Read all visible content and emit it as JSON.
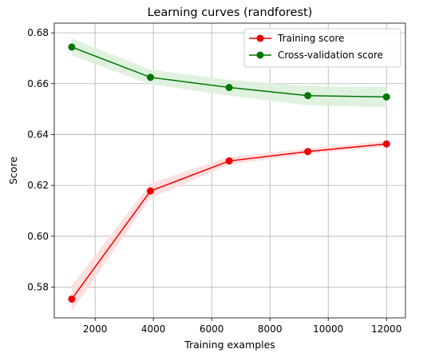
{
  "chart_data": {
    "type": "line",
    "title": "Learning curves (randforest)",
    "xlabel": "Training examples",
    "ylabel": "Score",
    "xlim": [
      600,
      12650
    ],
    "ylim": [
      0.5679,
      0.6838
    ],
    "xticks": [
      2000,
      4000,
      6000,
      8000,
      10000,
      12000
    ],
    "yticks": [
      0.58,
      0.6,
      0.62,
      0.64,
      0.66,
      0.68
    ],
    "xtick_labels": [
      "2000",
      "4000",
      "6000",
      "8000",
      "10000",
      "12000"
    ],
    "ytick_labels": [
      "0.58",
      "0.60",
      "0.62",
      "0.64",
      "0.66",
      "0.68"
    ],
    "grid": true,
    "legend": "top-right",
    "x": [
      1200,
      3900,
      6600,
      9300,
      12000
    ],
    "series": [
      {
        "name": "Training score",
        "color": "#ee0000",
        "band_color": "#ffdcdc",
        "values": [
          0.5753,
          0.6178,
          0.6296,
          0.6333,
          0.6363
        ],
        "lower": [
          0.5705,
          0.615,
          0.6282,
          0.6323,
          0.6353
        ],
        "upper": [
          0.5805,
          0.6208,
          0.6312,
          0.6345,
          0.6375
        ]
      },
      {
        "name": "Cross-validation score",
        "color": "#007700",
        "band_color": "#dcf1dc",
        "values": [
          0.6744,
          0.6625,
          0.6585,
          0.6553,
          0.6548
        ],
        "lower": [
          0.671,
          0.6598,
          0.6553,
          0.6515,
          0.6508
        ],
        "upper": [
          0.6778,
          0.6655,
          0.6615,
          0.659,
          0.6588
        ]
      }
    ]
  }
}
